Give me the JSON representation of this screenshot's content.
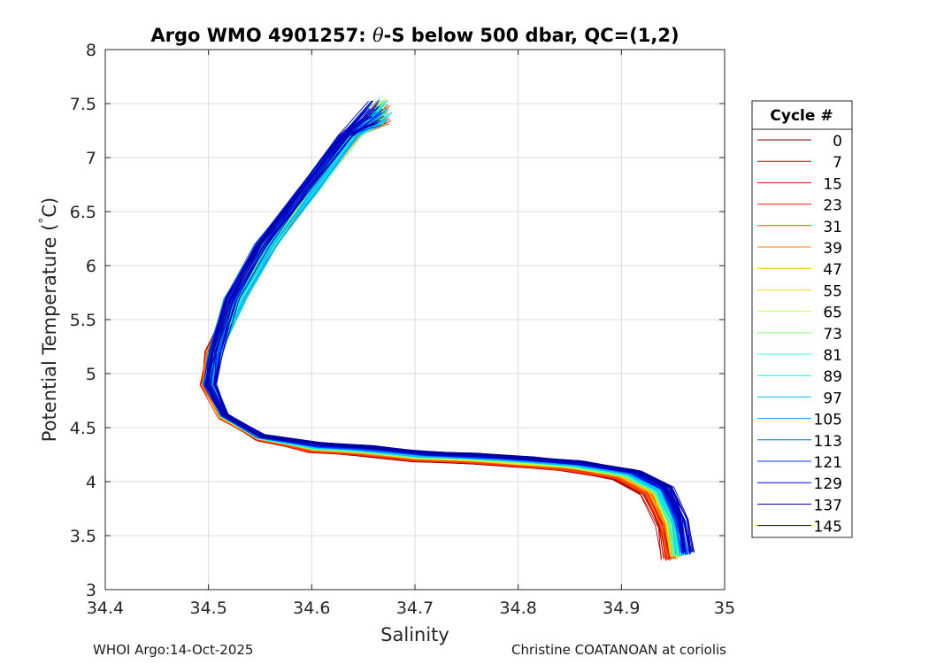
{
  "chart_data": {
    "type": "line",
    "title_parts": {
      "pre": "Argo WMO 4901257: ",
      "theta": "θ",
      "post": "-S below 500 dbar,  QC=(1,2)"
    },
    "xlabel": "Salinity",
    "ylabel": "Potential Temperature (°C)",
    "ylabel_parts": {
      "pre": "Potential Temperature (",
      "deg": "°",
      "post": "C)"
    },
    "xlim": [
      34.4,
      35.0
    ],
    "ylim": [
      3.0,
      8.0
    ],
    "xticks": [
      34.4,
      34.5,
      34.6,
      34.7,
      34.8,
      34.9,
      35.0
    ],
    "xtick_labels": [
      "34.4",
      "34.5",
      "34.6",
      "34.7",
      "34.8",
      "34.9",
      "35"
    ],
    "yticks": [
      3.0,
      3.5,
      4.0,
      4.5,
      5.0,
      5.5,
      6.0,
      6.5,
      7.0,
      7.5,
      8.0
    ],
    "ytick_labels": [
      "3",
      "3.5",
      "4",
      "4.5",
      "5",
      "5.5",
      "6",
      "6.5",
      "7",
      "7.5",
      "8"
    ],
    "grid": true,
    "colormap": "jet",
    "legend": {
      "title": "Cycle #",
      "placement": "right-outside",
      "entries": [
        {
          "label": "0",
          "color": "#800000"
        },
        {
          "label": "7",
          "color": "#b00000"
        },
        {
          "label": "15",
          "color": "#d80000"
        },
        {
          "label": "23",
          "color": "#ff1a00"
        },
        {
          "label": "31",
          "color": "#ff4d00"
        },
        {
          "label": "39",
          "color": "#ff8000"
        },
        {
          "label": "47",
          "color": "#ffb000"
        },
        {
          "label": "55",
          "color": "#ffe000"
        },
        {
          "label": "65",
          "color": "#c8ff38"
        },
        {
          "label": "73",
          "color": "#80ff80"
        },
        {
          "label": "81",
          "color": "#38ffc8"
        },
        {
          "label": "89",
          "color": "#00f0ff"
        },
        {
          "label": "97",
          "color": "#00c0ff"
        },
        {
          "label": "105",
          "color": "#0090ff"
        },
        {
          "label": "113",
          "color": "#0060ff"
        },
        {
          "label": "121",
          "color": "#0030ff"
        },
        {
          "label": "129",
          "color": "#0000e8"
        },
        {
          "label": "137",
          "color": "#0000b8"
        },
        {
          "label": "145",
          "color": "#000090"
        }
      ]
    },
    "profile_shape": {
      "description": "Representative theta-S curve shared by all cycles",
      "salinity": [
        34.67,
        34.64,
        34.6,
        34.56,
        34.53,
        34.505,
        34.5,
        34.515,
        34.55,
        34.6,
        34.65,
        34.7,
        34.75,
        34.8,
        34.85,
        34.9,
        34.93,
        34.945,
        34.95
      ],
      "temperature": [
        7.55,
        7.2,
        6.7,
        6.2,
        5.7,
        5.2,
        4.9,
        4.6,
        4.4,
        4.3,
        4.27,
        4.22,
        4.2,
        4.17,
        4.13,
        4.05,
        3.9,
        3.6,
        3.3
      ]
    }
  },
  "footer": {
    "left": "WHOI Argo:14-Oct-2025",
    "right": "Christine COATANOAN at coriolis"
  }
}
